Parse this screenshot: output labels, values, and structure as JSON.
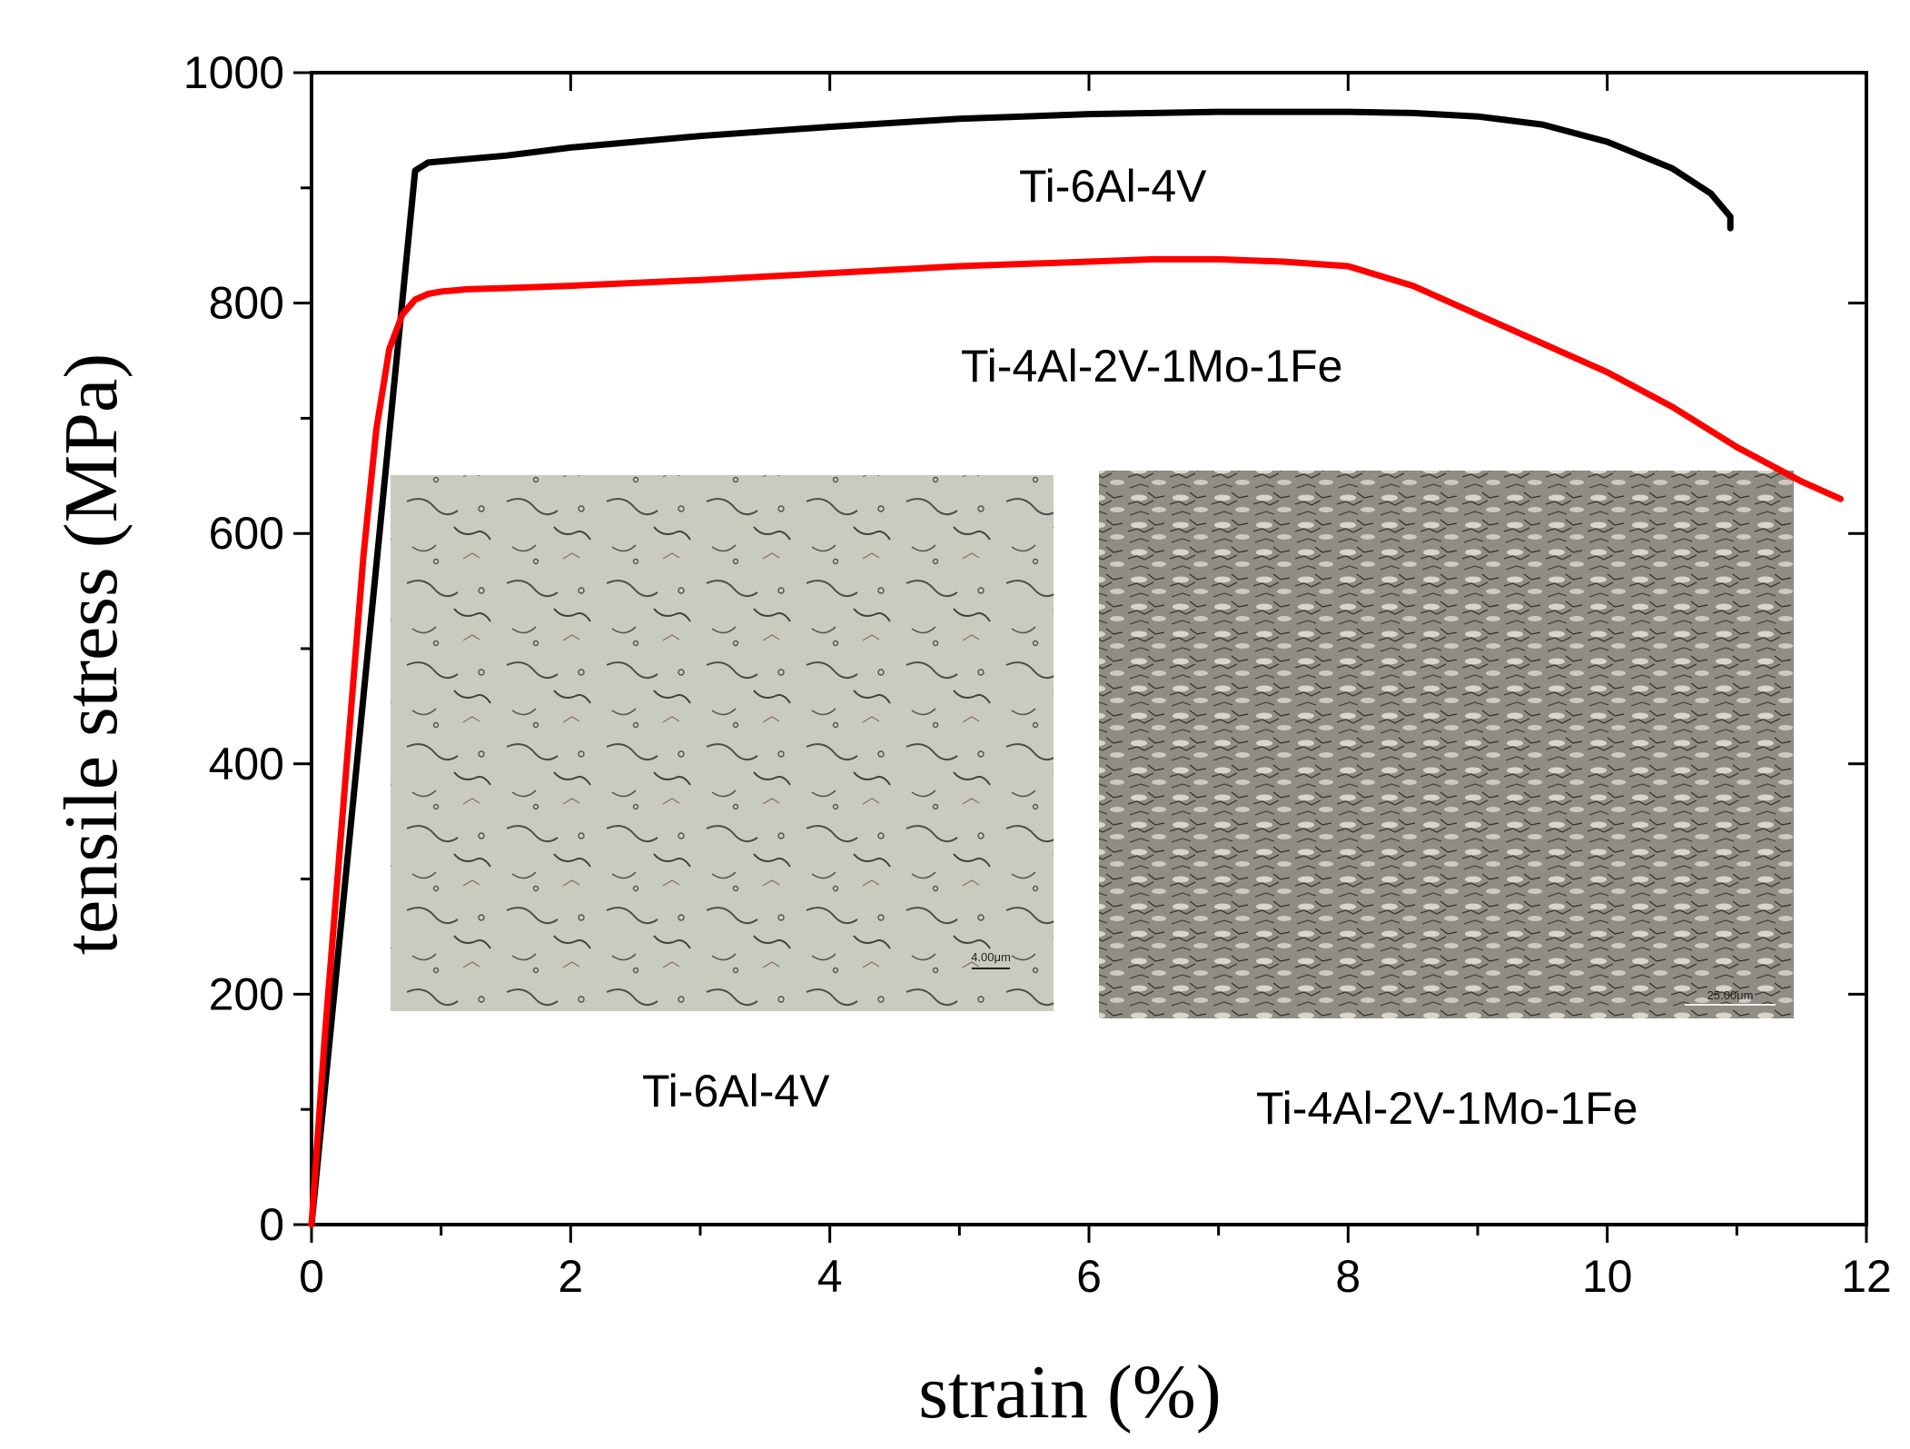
{
  "chart_data": {
    "type": "line",
    "xlabel": "strain (%)",
    "ylabel": "tensile stress (MPa)",
    "xlim": [
      0,
      12
    ],
    "ylim": [
      0,
      1000
    ],
    "xticks": [
      "0",
      "2",
      "4",
      "6",
      "8",
      "10",
      "12"
    ],
    "yticks": [
      "0",
      "200",
      "400",
      "600",
      "800",
      "1000"
    ],
    "series": [
      {
        "name": "Ti-6Al-4V",
        "color": "#000000",
        "x": [
          0,
          0.8,
          0.9,
          1.5,
          2,
          3,
          4,
          5,
          6,
          7,
          7.5,
          8,
          8.5,
          9,
          9.5,
          10,
          10.5,
          10.8,
          10.95,
          10.95
        ],
        "y": [
          0,
          915,
          922,
          928,
          935,
          945,
          953,
          960,
          964,
          966,
          966,
          966,
          965,
          962,
          955,
          940,
          917,
          895,
          875,
          865
        ]
      },
      {
        "name": "Ti-4Al-2V-1Mo-1Fe",
        "color": "#ff0000",
        "x": [
          0,
          0.05,
          0.1,
          0.2,
          0.3,
          0.4,
          0.5,
          0.6,
          0.7,
          0.8,
          0.9,
          1.0,
          1.1,
          1.2,
          1.5,
          2,
          3,
          4,
          5,
          6,
          6.5,
          7,
          7.5,
          8,
          8.5,
          9,
          9.5,
          10,
          10.5,
          11,
          11.5,
          11.8
        ],
        "y": [
          0,
          80,
          160,
          300,
          440,
          580,
          690,
          760,
          790,
          803,
          808,
          810,
          811,
          812,
          813,
          815,
          820,
          826,
          832,
          836,
          838,
          838,
          836,
          832,
          815,
          790,
          765,
          740,
          710,
          675,
          645,
          630
        ]
      }
    ],
    "annotations": [
      "Ti-6Al-4V",
      "Ti-4Al-2V-1Mo-1Fe"
    ],
    "inset_labels": [
      "Ti-6Al-4V",
      "Ti-4Al-2V-1Mo-1Fe"
    ],
    "inset_scale_bars": [
      "4.00μm",
      "25.00μm"
    ],
    "grid": false,
    "legend": "none"
  }
}
